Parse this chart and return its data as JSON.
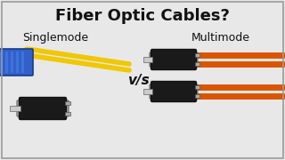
{
  "bg_color": "#e8e8e8",
  "title": "Fiber Optic Cables?",
  "title_fontsize": 13,
  "title_fontweight": "bold",
  "title_color": "#111111",
  "label_left": "Singlemode",
  "label_right": "Multimode",
  "vs_text": "v/s",
  "label_fontsize": 9,
  "vs_fontsize": 11,
  "cable_yellow": "#f0c800",
  "cable_orange": "#d95500",
  "connector_blue": "#3060cc",
  "connector_blue_dark": "#1a3a88",
  "connector_black": "#1a1a1a",
  "connector_gray": "#888888",
  "connector_silver": "#b0b0b0",
  "border_color": "#999999",
  "border_lw": 1.2
}
